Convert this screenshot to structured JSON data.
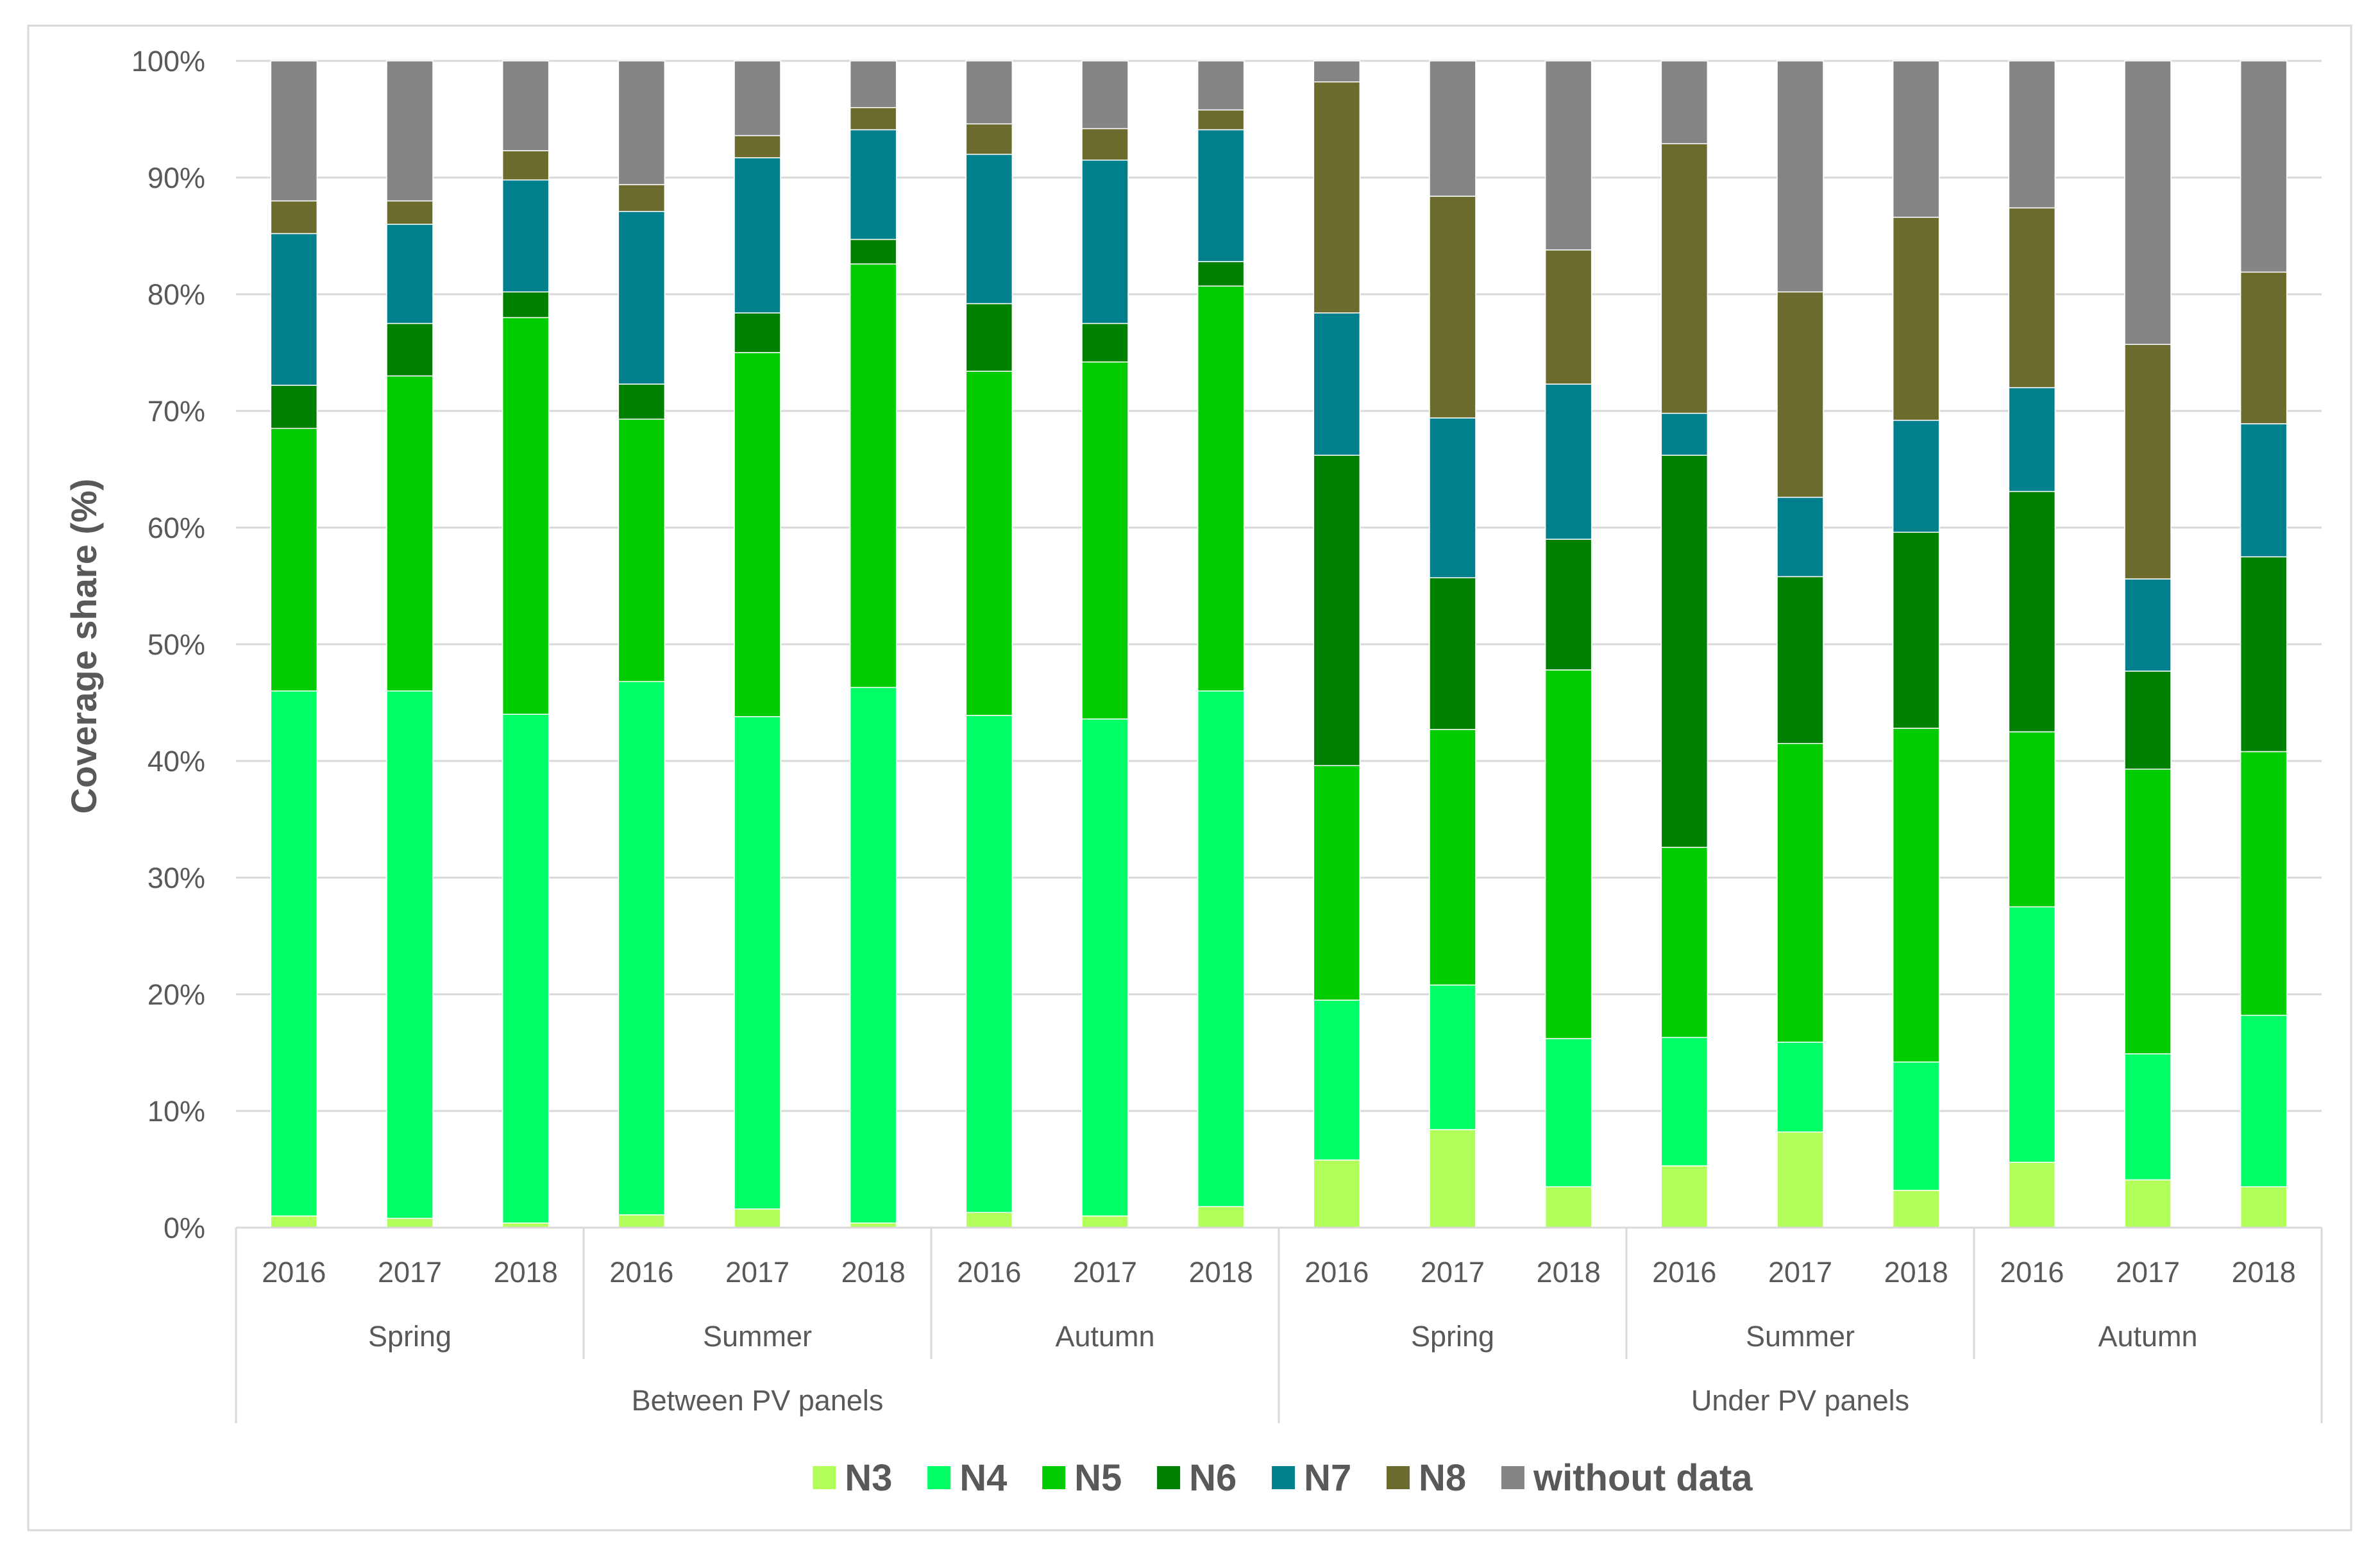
{
  "chart_data": {
    "type": "bar",
    "stacked": true,
    "ylabel": "Coverage share (%)",
    "ylim": [
      0,
      100
    ],
    "yticks": [
      "0%",
      "10%",
      "20%",
      "30%",
      "40%",
      "50%",
      "60%",
      "70%",
      "80%",
      "90%",
      "100%"
    ],
    "categories": [
      "2016",
      "2017",
      "2018",
      "2016",
      "2017",
      "2018",
      "2016",
      "2017",
      "2018",
      "2016",
      "2017",
      "2018",
      "2016",
      "2017",
      "2018",
      "2016",
      "2017",
      "2018"
    ],
    "season_groups": [
      "Spring",
      "Summer",
      "Autumn",
      "Spring",
      "Summer",
      "Autumn"
    ],
    "location_groups": [
      "Between PV panels",
      "Under PV panels"
    ],
    "series": [
      {
        "name": "N3",
        "color": "#b2ff59",
        "values": [
          1.0,
          0.8,
          0.4,
          1.1,
          1.6,
          0.4,
          1.3,
          1.0,
          1.8,
          5.8,
          8.4,
          3.5,
          5.3,
          8.2,
          3.2,
          5.6,
          4.1,
          3.5
        ]
      },
      {
        "name": "N4",
        "color": "#00ff66",
        "values": [
          45.0,
          45.2,
          43.6,
          45.7,
          42.2,
          45.9,
          42.6,
          42.6,
          44.2,
          13.7,
          12.4,
          12.7,
          11.0,
          7.7,
          11.0,
          21.9,
          10.8,
          14.7
        ]
      },
      {
        "name": "N5",
        "color": "#00cc00",
        "values": [
          22.5,
          27.0,
          34.0,
          22.5,
          31.2,
          36.3,
          29.5,
          30.6,
          34.7,
          20.1,
          21.9,
          31.6,
          16.3,
          25.6,
          28.6,
          15.0,
          24.4,
          22.6
        ]
      },
      {
        "name": "N6",
        "color": "#008000",
        "values": [
          3.7,
          4.5,
          2.2,
          3.0,
          3.4,
          2.1,
          5.8,
          3.3,
          2.1,
          26.6,
          13.0,
          11.2,
          33.6,
          14.3,
          16.8,
          20.6,
          8.4,
          16.7
        ]
      },
      {
        "name": "N7",
        "color": "#00808c",
        "values": [
          13.0,
          8.5,
          9.6,
          14.8,
          13.3,
          9.4,
          12.8,
          14.0,
          11.3,
          12.2,
          13.7,
          13.3,
          3.6,
          6.8,
          9.6,
          8.9,
          7.9,
          11.4
        ]
      },
      {
        "name": "N8",
        "color": "#6b6b2e",
        "values": [
          2.8,
          2.0,
          2.5,
          2.3,
          1.9,
          1.9,
          2.6,
          2.7,
          1.7,
          19.8,
          19.0,
          11.5,
          23.1,
          17.6,
          17.4,
          15.4,
          20.1,
          13.0
        ]
      },
      {
        "name": "without data",
        "color": "#858585",
        "values": [
          12.0,
          12.0,
          7.7,
          10.6,
          6.4,
          4.0,
          5.4,
          5.8,
          4.2,
          1.8,
          11.6,
          16.2,
          7.1,
          19.8,
          13.4,
          12.6,
          24.3,
          18.1
        ]
      }
    ],
    "legend_position": "bottom",
    "grid": true
  }
}
